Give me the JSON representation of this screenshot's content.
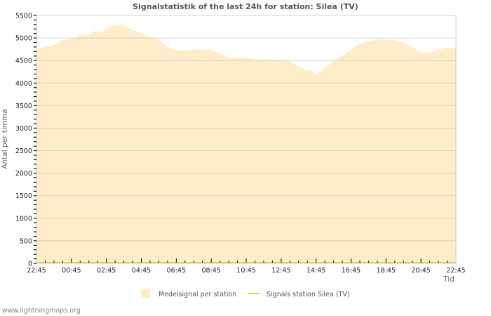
{
  "page": {
    "footer_text": "www.lightningmaps.org"
  },
  "colors": {
    "area_fill": "#ffecc9",
    "line": "#f5c842",
    "grid": "#cccccc",
    "axis": "#cccccc",
    "title": "#555555"
  },
  "chart_data": {
    "type": "area",
    "title": "Signalstatistik of the last 24h for station: Silea (TV)",
    "xlabel": "Tid",
    "ylabel": "Antal per timma",
    "ylim": [
      0,
      5500
    ],
    "yticks": [
      0,
      500,
      1000,
      1500,
      2000,
      2500,
      3000,
      3500,
      4000,
      4500,
      5000,
      5500
    ],
    "xtick_labels": [
      "22:45",
      "00:45",
      "02:45",
      "04:45",
      "06:45",
      "08:45",
      "10:45",
      "12:45",
      "14:45",
      "16:45",
      "18:45",
      "20:45",
      "22:45"
    ],
    "grid": true,
    "legend_position": "bottom",
    "x_hours": [
      0,
      1,
      1.5,
      2,
      2.5,
      3,
      3.25,
      3.75,
      4,
      4.5,
      5,
      5.5,
      6,
      6.5,
      7,
      7.5,
      8,
      8.5,
      9,
      9.5,
      10,
      10.5,
      11,
      11.5,
      12,
      12.5,
      13,
      13.5,
      14,
      14.5,
      15,
      15.5,
      15.75,
      16,
      16.5,
      17,
      17.5,
      18,
      18.5,
      19,
      19.5,
      20,
      20.5,
      21,
      21.5,
      22,
      22.5,
      23,
      23.5,
      24
    ],
    "series": [
      {
        "name": "Medelsignal per station",
        "kind": "area",
        "values": [
          4770,
          4850,
          4950,
          4970,
          5080,
          5060,
          5150,
          5130,
          5200,
          5300,
          5270,
          5180,
          5100,
          5020,
          4970,
          4800,
          4720,
          4720,
          4750,
          4740,
          4740,
          4650,
          4570,
          4570,
          4560,
          4520,
          4530,
          4510,
          4520,
          4480,
          4360,
          4270,
          4280,
          4200,
          4330,
          4480,
          4600,
          4740,
          4880,
          4930,
          4970,
          4960,
          4950,
          4890,
          4800,
          4670,
          4680,
          4750,
          4790,
          4760
        ]
      },
      {
        "name": "Signals station Silea (TV)",
        "kind": "line",
        "values": [
          0,
          0,
          0,
          0,
          0,
          0,
          0,
          0,
          0,
          0,
          0,
          0,
          0,
          0,
          0,
          0,
          0,
          0,
          0,
          0,
          0,
          0,
          0,
          0,
          0,
          0,
          0,
          0,
          0,
          0,
          0,
          0,
          0,
          0,
          0,
          0,
          0,
          0,
          0,
          0,
          0,
          0,
          0,
          0,
          0,
          0,
          0,
          0,
          0,
          0
        ]
      }
    ]
  }
}
